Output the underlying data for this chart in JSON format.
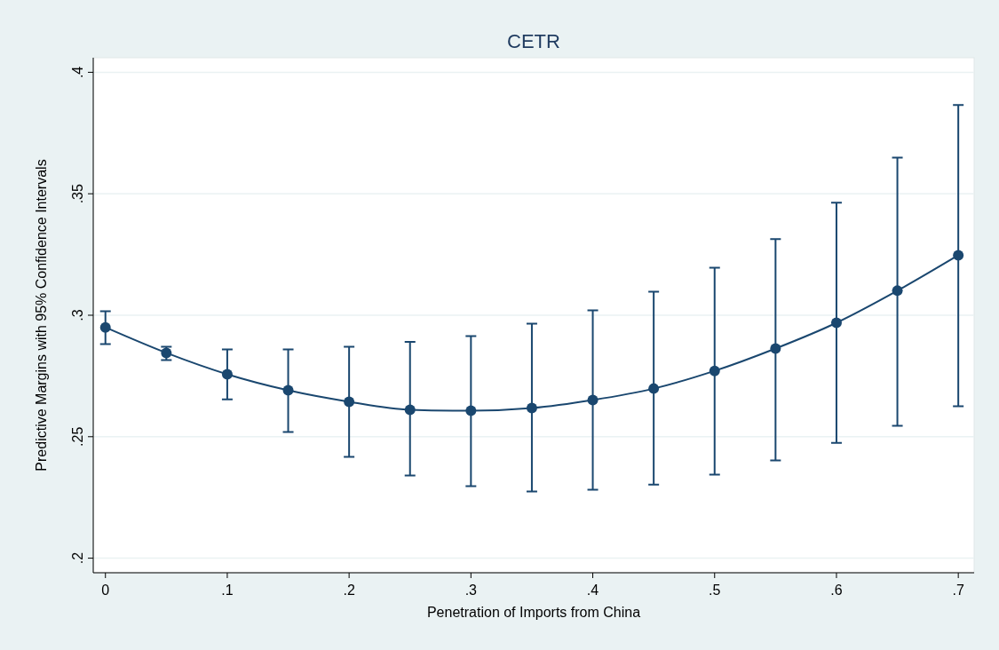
{
  "chart_data": {
    "type": "line",
    "title": "CETR",
    "xlabel": "Penetration of Imports from China",
    "ylabel": "Predictive Margins with 95% Confidence Intervals",
    "x": [
      0,
      0.05,
      0.1,
      0.15,
      0.2,
      0.25,
      0.3,
      0.35,
      0.4,
      0.45,
      0.5,
      0.55,
      0.6,
      0.65,
      0.7
    ],
    "series": [
      {
        "color": "#1a476f",
        "values": [
          0.295,
          0.2845,
          0.2757,
          0.2691,
          0.2644,
          0.2611,
          0.2607,
          0.2618,
          0.2651,
          0.2698,
          0.2771,
          0.2863,
          0.2969,
          0.3101,
          0.3247
        ],
        "errors": [
          [
            0.2881,
            0.3016
          ],
          [
            0.2815,
            0.287
          ],
          [
            0.2654,
            0.2859
          ],
          [
            0.2519,
            0.2859
          ],
          [
            0.2417,
            0.287
          ],
          [
            0.234,
            0.289
          ],
          [
            0.2296,
            0.2914
          ],
          [
            0.2274,
            0.2965
          ],
          [
            0.2282,
            0.302
          ],
          [
            0.2303,
            0.3097
          ],
          [
            0.2344,
            0.3196
          ],
          [
            0.2402,
            0.3313
          ],
          [
            0.2475,
            0.3463
          ],
          [
            0.2545,
            0.3649
          ],
          [
            0.2625,
            0.3865
          ]
        ]
      }
    ],
    "xlim": [
      -0.01,
      0.713
    ],
    "ylim": [
      0.194,
      0.406
    ],
    "xticks": [
      0,
      {
        "value": 0.1,
        "label": ".1"
      },
      {
        "value": 0.2,
        "label": ".2"
      },
      {
        "value": 0.3,
        "label": ".3"
      },
      {
        "value": 0.4,
        "label": ".4"
      },
      {
        "value": 0.5,
        "label": ".5"
      },
      {
        "value": 0.6,
        "label": ".6"
      },
      {
        "value": 0.7,
        "label": ".7"
      }
    ],
    "yticks": [
      {
        "value": 0.2,
        "label": ".2"
      },
      {
        "value": 0.25,
        "label": ".25"
      },
      {
        "value": 0.3,
        "label": ".3"
      },
      {
        "value": 0.35,
        "label": ".35"
      },
      {
        "value": 0.4,
        "label": ".4"
      }
    ],
    "grid": "y",
    "marker": "circle",
    "line_style": "solid"
  }
}
